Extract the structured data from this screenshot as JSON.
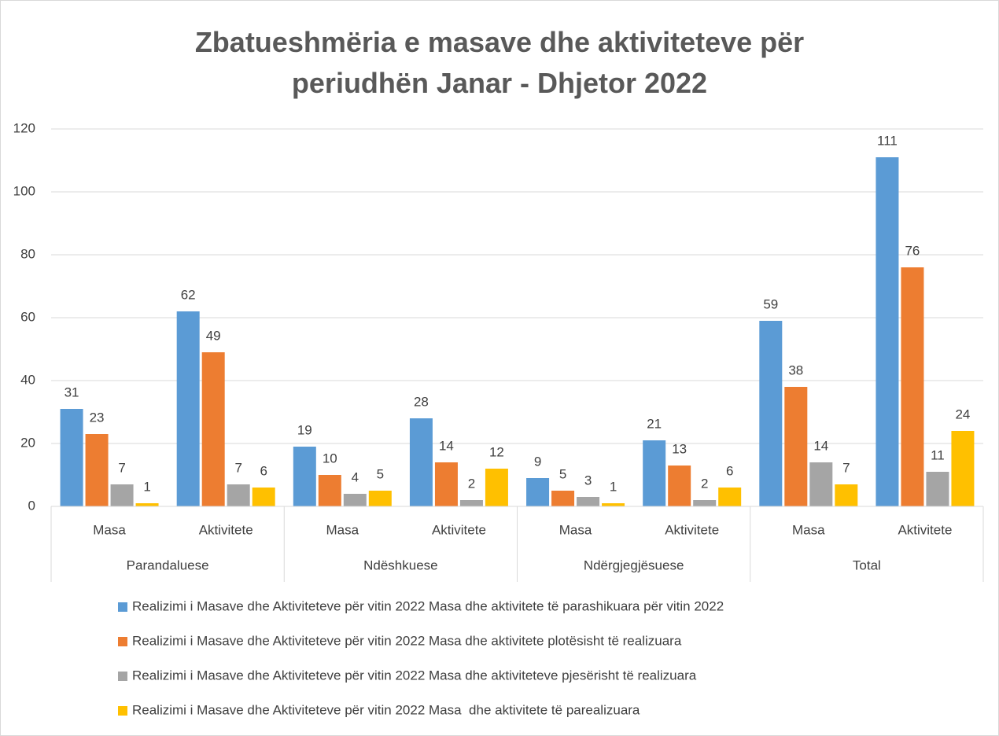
{
  "chart_data": {
    "type": "bar",
    "title": "Zbatueshmëria e masave dhe aktiviteteve për periudhën Janar - Dhjetor 2022",
    "categories": [
      "Masa",
      "Aktivitete",
      "Masa",
      "Aktivitete",
      "Masa",
      "Aktivitete",
      "Masa",
      "Aktivitete"
    ],
    "category_groups": [
      "Parandaluese",
      "Ndëshkuese",
      "Ndërgjegjësuese",
      "Total"
    ],
    "series": [
      {
        "name": "Realizimi i Masave dhe Aktiviteteve për vitin 2022 Masa dhe aktivitete të parashikuara për vitin 2022",
        "color": "#5b9bd5",
        "values": [
          31,
          62,
          19,
          28,
          9,
          21,
          59,
          111
        ]
      },
      {
        "name": "Realizimi i Masave dhe Aktiviteteve për vitin 2022 Masa dhe aktivitete plotësisht të realizuara",
        "color": "#ed7d31",
        "values": [
          23,
          49,
          10,
          14,
          5,
          13,
          38,
          76
        ]
      },
      {
        "name": "Realizimi i Masave dhe Aktiviteteve për vitin 2022 Masa dhe aktiviteteve pjesërisht të realizuara",
        "color": "#a5a5a5",
        "values": [
          7,
          7,
          4,
          2,
          3,
          2,
          14,
          11
        ]
      },
      {
        "name": "Realizimi i Masave dhe Aktiviteteve për vitin 2022 Masa  dhe aktivitete të parealizuara",
        "color": "#ffc000",
        "values": [
          1,
          6,
          5,
          12,
          1,
          6,
          7,
          24
        ]
      }
    ],
    "ylim": [
      0,
      120
    ],
    "yticks": [
      0,
      20,
      40,
      60,
      80,
      100,
      120
    ],
    "grid": true,
    "legend": "bottom"
  }
}
